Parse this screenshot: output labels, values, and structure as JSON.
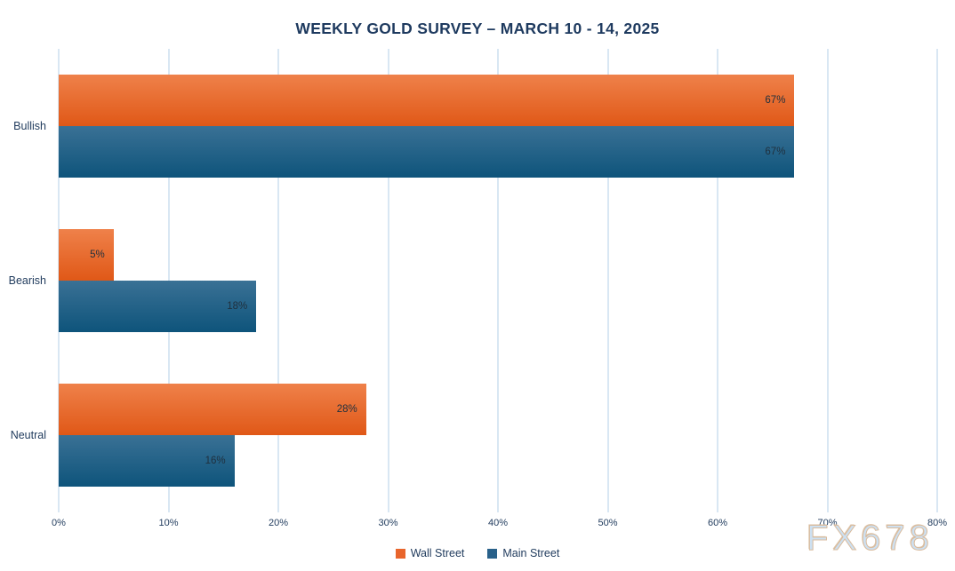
{
  "title": "WEEKLY GOLD SURVEY – MARCH 10 - 14, 2025",
  "watermark": "FX678",
  "colors": {
    "title_text": "#1e3a5f",
    "axis_text": "#1f3a5c",
    "bar_label_text": "#20303e",
    "gridline": "#d9e7f3",
    "watermark_fill": "#cde0f1",
    "watermark_outline": "#d9bb9d"
  },
  "chart_data": {
    "type": "bar",
    "orientation": "horizontal",
    "title": "WEEKLY GOLD SURVEY – MARCH 10 - 14, 2025",
    "categories": [
      "Bullish",
      "Bearish",
      "Neutral"
    ],
    "series": [
      {
        "name": "Wall Street",
        "values": [
          67,
          5,
          28
        ],
        "color_top": "#ef814a",
        "color_bottom": "#e05817",
        "legend_color": "#e8652c"
      },
      {
        "name": "Main Street",
        "values": [
          67,
          18,
          16
        ],
        "color_top": "#3a7195",
        "color_bottom": "#0e547b",
        "legend_color": "#29618a"
      }
    ],
    "value_suffix": "%",
    "xlim": [
      0,
      80
    ],
    "x_ticks": [
      "0%",
      "10%",
      "20%",
      "30%",
      "40%",
      "50%",
      "60%",
      "70%",
      "80%"
    ],
    "grid": true,
    "legend_position": "bottom"
  }
}
